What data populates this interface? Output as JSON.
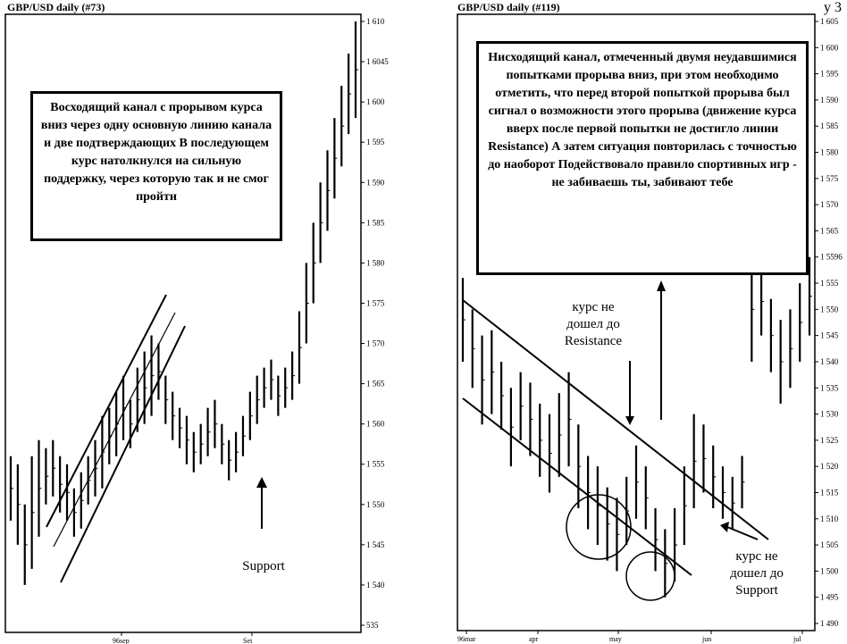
{
  "corner_mark": "у 3",
  "panels": [
    {
      "title": "GBP/USD   daily   (#73)",
      "note": "Восходящий канал с прорывом курса вниз через одну основную линию канала и две подтверждающих  В последующем курс натолкнулся на сильную поддержку, через которую так и не смог пройти",
      "labels": {
        "support": "Support"
      }
    },
    {
      "title": "GBP/USD   daily   (#119)",
      "note": "Нисходящий канал, отмеченный двумя неудавшимися попытками прорыва вниз, при этом необходимо отметить, что перед второй попыткой прорыва был сигнал о возможности этого прорыва (движение курса вверх после первой попытки не достигло линии Resistance)  А затем ситуация повторилась с точностью до наоборот  Подействовало правило спортивных игр - не забиваешь ты, забивают тебе",
      "labels": {
        "resistance": "курс не дошел до Resistance",
        "support": "курс не дошел до Support"
      }
    }
  ],
  "chart_data": [
    {
      "type": "bar",
      "title": "GBP/USD   daily   (#73)",
      "y_ticks": [
        "1 610",
        "1 6045",
        "1 600",
        "1 595",
        "1 590",
        "1 585",
        "1 580",
        "1 575",
        "1 570",
        "1 565",
        "1 560",
        "1 555",
        "1 550",
        "1 545",
        "1 540",
        "535"
      ],
      "x_ticks": [
        "96sep",
        "Sei"
      ],
      "ylim": [
        1.535,
        1.61
      ],
      "bars": [
        [
          1.548,
          1.556
        ],
        [
          1.545,
          1.555
        ],
        [
          1.54,
          1.55
        ],
        [
          1.542,
          1.556
        ],
        [
          1.546,
          1.558
        ],
        [
          1.55,
          1.557
        ],
        [
          1.551,
          1.558
        ],
        [
          1.549,
          1.556
        ],
        [
          1.548,
          1.555
        ],
        [
          1.546,
          1.552
        ],
        [
          1.547,
          1.554
        ],
        [
          1.55,
          1.556
        ],
        [
          1.551,
          1.558
        ],
        [
          1.552,
          1.561
        ],
        [
          1.555,
          1.562
        ],
        [
          1.556,
          1.564
        ],
        [
          1.558,
          1.566
        ],
        [
          1.557,
          1.563
        ],
        [
          1.559,
          1.567
        ],
        [
          1.56,
          1.569
        ],
        [
          1.561,
          1.571
        ],
        [
          1.563,
          1.57
        ],
        [
          1.56,
          1.566
        ],
        [
          1.558,
          1.564
        ],
        [
          1.557,
          1.562
        ],
        [
          1.555,
          1.561
        ],
        [
          1.554,
          1.559
        ],
        [
          1.555,
          1.56
        ],
        [
          1.556,
          1.562
        ],
        [
          1.557,
          1.563
        ],
        [
          1.555,
          1.56
        ],
        [
          1.553,
          1.558
        ],
        [
          1.554,
          1.559
        ],
        [
          1.556,
          1.561
        ],
        [
          1.558,
          1.564
        ],
        [
          1.56,
          1.566
        ],
        [
          1.562,
          1.567
        ],
        [
          1.563,
          1.568
        ],
        [
          1.561,
          1.566
        ],
        [
          1.562,
          1.567
        ],
        [
          1.563,
          1.569
        ],
        [
          1.565,
          1.574
        ],
        [
          1.57,
          1.58
        ],
        [
          1.575,
          1.585
        ],
        [
          1.58,
          1.59
        ],
        [
          1.584,
          1.594
        ],
        [
          1.588,
          1.598
        ],
        [
          1.592,
          1.602
        ],
        [
          1.596,
          1.606
        ],
        [
          1.598,
          1.61
        ]
      ]
    },
    {
      "type": "bar",
      "title": "GBP/USD   daily   (#119)",
      "y_ticks": [
        "1 605",
        "1 600",
        "1 595",
        "1 590",
        "1 585",
        "1 580",
        "1 575",
        "1 570",
        "1 565",
        "1 5596",
        "1 555",
        "1 550",
        "1 545",
        "1 540",
        "1 535",
        "1 530",
        "1 525",
        "1 520",
        "1 515",
        "1 510",
        "1 505",
        "1 500",
        "1 495",
        "1 490"
      ],
      "x_ticks": [
        "96mar",
        "apr",
        "may",
        "jun",
        "jul"
      ],
      "ylim": [
        1.49,
        1.605
      ],
      "bars": [
        [
          1.54,
          1.556
        ],
        [
          1.535,
          1.55
        ],
        [
          1.528,
          1.545
        ],
        [
          1.53,
          1.546
        ],
        [
          1.527,
          1.54
        ],
        [
          1.52,
          1.535
        ],
        [
          1.525,
          1.538
        ],
        [
          1.522,
          1.536
        ],
        [
          1.518,
          1.532
        ],
        [
          1.515,
          1.53
        ],
        [
          1.518,
          1.534
        ],
        [
          1.52,
          1.538
        ],
        [
          1.512,
          1.528
        ],
        [
          1.508,
          1.522
        ],
        [
          1.505,
          1.52
        ],
        [
          1.502,
          1.516
        ],
        [
          1.5,
          1.514
        ],
        [
          1.505,
          1.518
        ],
        [
          1.51,
          1.524
        ],
        [
          1.508,
          1.52
        ],
        [
          1.5,
          1.512
        ],
        [
          1.495,
          1.508
        ],
        [
          1.498,
          1.512
        ],
        [
          1.505,
          1.52
        ],
        [
          1.512,
          1.53
        ],
        [
          1.515,
          1.528
        ],
        [
          1.512,
          1.524
        ],
        [
          1.51,
          1.52
        ],
        [
          1.508,
          1.518
        ],
        [
          1.512,
          1.522
        ],
        [
          1.54,
          1.56
        ],
        [
          1.545,
          1.558
        ],
        [
          1.538,
          1.552
        ],
        [
          1.532,
          1.548
        ],
        [
          1.535,
          1.55
        ],
        [
          1.54,
          1.555
        ],
        [
          1.545,
          1.56
        ]
      ]
    }
  ]
}
